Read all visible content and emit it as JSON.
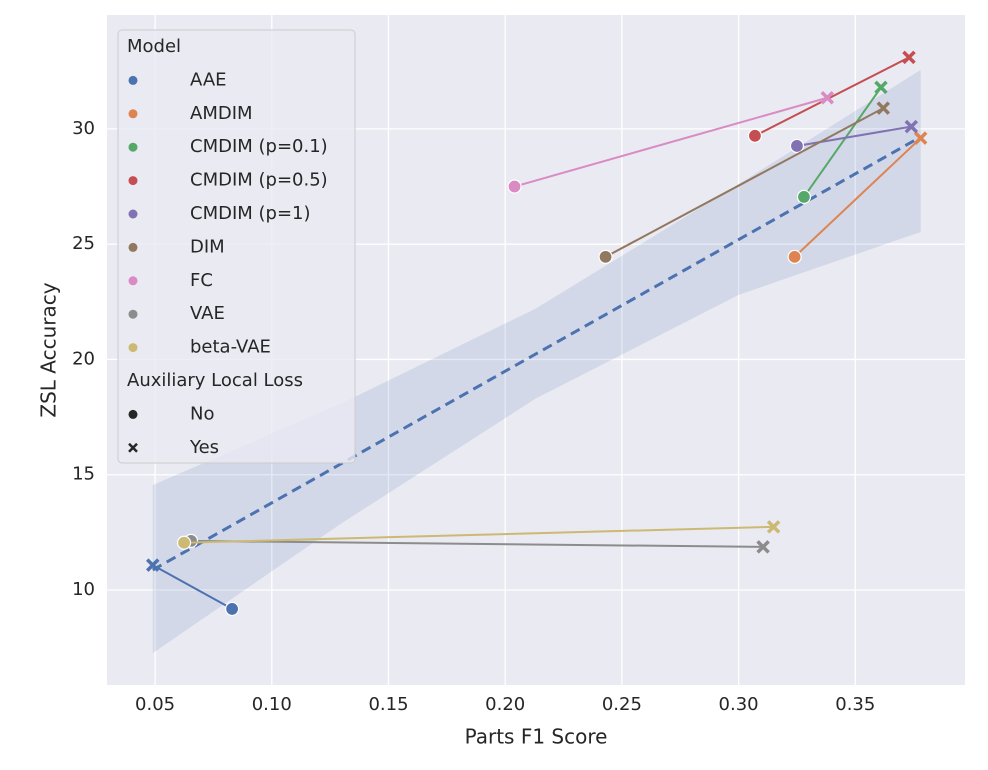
{
  "chart_data": {
    "type": "scatter",
    "xlabel": "Parts F1 Score",
    "ylabel": "ZSL Accuracy",
    "xlim": [
      0.0294,
      0.397
    ],
    "ylim": [
      5.88,
      34.94
    ],
    "xticks": [
      0.05,
      {
        "value": 0.1,
        "label": "0.10"
      },
      0.15,
      {
        "value": 0.2,
        "label": "0.20"
      },
      0.25,
      {
        "value": 0.3,
        "label": "0.30"
      },
      0.35
    ],
    "yticks": [
      10,
      15,
      20,
      25,
      30
    ],
    "grid": true,
    "legend": "upper left",
    "legend_title": "Model",
    "marker_legend": {
      "title": "Auxiliary Local Loss",
      "labels": [
        "No",
        "Yes"
      ]
    },
    "series": [
      {
        "name": "AAE",
        "color": "#4c72b0",
        "x": [
          0.083,
          0.049
        ],
        "values": [
          9.18,
          11.08
        ]
      },
      {
        "name": "AMDIM",
        "color": "#dd8452",
        "x": [
          0.324,
          0.378
        ],
        "values": [
          24.45,
          29.6
        ]
      },
      {
        "name": "CMDIM (p=0.1)",
        "color": "#55a868",
        "x": [
          0.328,
          0.361
        ],
        "values": [
          27.05,
          31.8
        ]
      },
      {
        "name": "CMDIM (p=0.5)",
        "color": "#c44e52",
        "x": [
          0.307,
          0.373
        ],
        "values": [
          29.7,
          33.1
        ]
      },
      {
        "name": "CMDIM (p=1)",
        "color": "#8172b3",
        "x": [
          0.325,
          0.374
        ],
        "values": [
          29.26,
          30.1
        ]
      },
      {
        "name": "DIM",
        "color": "#937860",
        "x": [
          0.243,
          0.362
        ],
        "values": [
          24.45,
          30.9
        ]
      },
      {
        "name": "FC",
        "color": "#da8bc3",
        "x": [
          0.204,
          0.338
        ],
        "values": [
          27.5,
          31.35
        ]
      },
      {
        "name": "VAE",
        "color": "#8c8c8c",
        "x": [
          0.0654,
          0.3105
        ],
        "values": [
          12.13,
          11.87
        ]
      },
      {
        "name": "beta-VAE",
        "color": "#ccb974",
        "x": [
          0.0624,
          0.315
        ],
        "values": [
          12.05,
          12.74
        ]
      }
    ],
    "regression": {
      "color": "#4c72b0",
      "x": [
        0.049,
        0.378
      ],
      "values": [
        10.87,
        29.65
      ],
      "band_x": [
        0.049,
        0.13,
        0.213,
        0.3,
        0.378
      ],
      "band_upper": [
        14.55,
        18.1,
        22.2,
        27.6,
        32.56
      ],
      "band_lower": [
        7.26,
        12.9,
        18.3,
        22.8,
        25.53
      ]
    }
  }
}
